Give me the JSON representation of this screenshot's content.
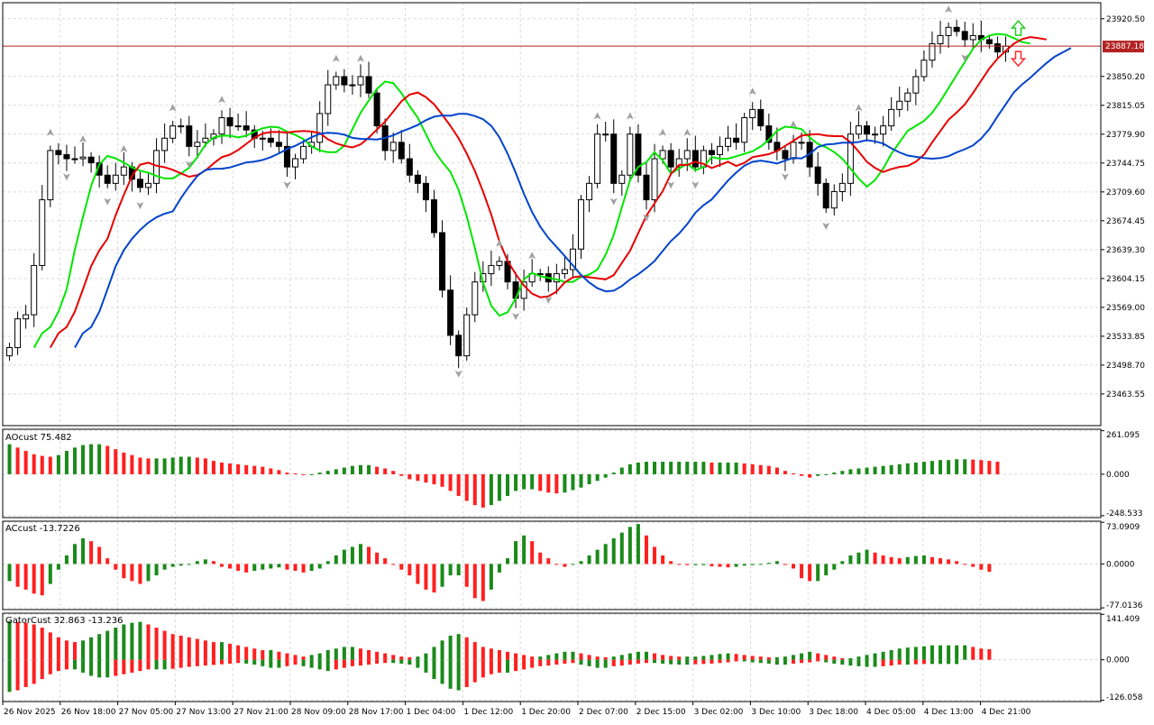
{
  "colors": {
    "background": "#ffffff",
    "grid": "#d9d9d9",
    "frame": "#000000",
    "candle": "#000000",
    "alligator_lips": "#00e600",
    "alligator_teeth": "#e60000",
    "alligator_jaw": "#0044cc",
    "price_line": "#b22222",
    "price_tag_bg": "#b22222",
    "price_tag_text": "#ffffff",
    "up_bar": "#1a8a1a",
    "down_bar": "#ff1f1f",
    "fractal": "#a0a0a0",
    "arrow_up": "#22cc22",
    "arrow_down": "#ff2a2a"
  },
  "icons": {
    "fractal_up": "fractal-up-arrow-icon",
    "fractal_down": "fractal-down-arrow-icon",
    "signal_up": "hollow-up-arrow-icon",
    "signal_down": "hollow-down-arrow-icon"
  },
  "current_price": "23887.18",
  "time_labels": [
    "26 Nov 2025",
    "26 Nov 18:00",
    "27 Nov 05:00",
    "27 Nov 13:00",
    "27 Nov 21:00",
    "28 Nov 09:00",
    "28 Nov 17:00",
    "1 Dec 04:00",
    "1 Dec 12:00",
    "1 Dec 20:00",
    "2 Dec 07:00",
    "2 Dec 15:00",
    "3 Dec 02:00",
    "3 Dec 10:00",
    "3 Dec 18:00",
    "4 Dec 05:00",
    "4 Dec 13:00",
    "4 Dec 21:00"
  ],
  "chart_data": [
    {
      "type": "candlestick",
      "title": "",
      "y_ticks": [
        "23920.50",
        "23850.20",
        "23815.05",
        "23779.90",
        "23744.75",
        "23709.60",
        "23674.45",
        "23639.30",
        "23604.15",
        "23569.00",
        "23533.85",
        "23498.70",
        "23463.55"
      ],
      "ylim": [
        23425,
        23940
      ],
      "lines": [
        "Alligator Lips",
        "Alligator Teeth",
        "Alligator Jaw"
      ],
      "open": [
        23510,
        23520,
        23555,
        23560,
        23620,
        23700,
        23760,
        23755,
        23750,
        23750,
        23752,
        23745,
        23730,
        23720,
        23730,
        23740,
        23725,
        23715,
        23720,
        23760,
        23775,
        23790,
        23790,
        23765,
        23770,
        23775,
        23780,
        23800,
        23790,
        23790,
        23785,
        23775,
        23775,
        23770,
        23765,
        23740,
        23750,
        23765,
        23770,
        23805,
        23840,
        23850,
        23840,
        23840,
        23850,
        23830,
        23790,
        23760,
        23770,
        23750,
        23730,
        23720,
        23700,
        23660,
        23590,
        23535,
        23510,
        23560,
        23600,
        23610,
        23620,
        23625,
        23600,
        23580,
        23600,
        23610,
        23610,
        23600,
        23610,
        23615,
        23640,
        23700,
        23720,
        23780,
        23780,
        23720,
        23730,
        23780,
        23730,
        23700,
        23750,
        23760,
        23740,
        23750,
        23760,
        23740,
        23760,
        23755,
        23765,
        23775,
        23770,
        23800,
        23810,
        23790,
        23770,
        23760,
        23750,
        23770,
        23770,
        23740,
        23720,
        23690,
        23710,
        23720,
        23780,
        23790,
        23780,
        23780,
        23790,
        23810,
        23820,
        23830,
        23850,
        23870,
        23890,
        23900,
        23910,
        23905,
        23895,
        23900,
        23895,
        23890,
        23880
      ],
      "close": [
        23520,
        23555,
        23560,
        23620,
        23700,
        23760,
        23755,
        23750,
        23750,
        23752,
        23745,
        23730,
        23720,
        23730,
        23740,
        23725,
        23715,
        23720,
        23760,
        23775,
        23790,
        23790,
        23765,
        23770,
        23775,
        23780,
        23800,
        23790,
        23790,
        23785,
        23775,
        23775,
        23770,
        23765,
        23740,
        23750,
        23765,
        23770,
        23805,
        23840,
        23850,
        23840,
        23840,
        23850,
        23830,
        23790,
        23760,
        23770,
        23750,
        23730,
        23720,
        23700,
        23660,
        23590,
        23535,
        23510,
        23560,
        23600,
        23610,
        23620,
        23625,
        23600,
        23580,
        23600,
        23610,
        23610,
        23600,
        23610,
        23615,
        23640,
        23700,
        23720,
        23780,
        23780,
        23720,
        23730,
        23780,
        23730,
        23700,
        23750,
        23760,
        23740,
        23750,
        23760,
        23740,
        23760,
        23755,
        23765,
        23775,
        23770,
        23800,
        23810,
        23790,
        23770,
        23760,
        23750,
        23770,
        23770,
        23740,
        23720,
        23690,
        23710,
        23720,
        23780,
        23790,
        23780,
        23780,
        23790,
        23810,
        23820,
        23830,
        23850,
        23870,
        23890,
        23900,
        23910,
        23905,
        23895,
        23900,
        23895,
        23890,
        23880,
        23887
      ]
    },
    {
      "type": "bar",
      "title": "AOcust 75.482",
      "y_ticks": [
        "261.095",
        "0.000",
        "-248.533"
      ],
      "ylim": [
        -260,
        270
      ],
      "series": [
        {
          "name": "AOcust",
          "values": [
            180,
            160,
            140,
            120,
            110,
            105,
            115,
            140,
            160,
            175,
            180,
            180,
            170,
            150,
            130,
            115,
            100,
            95,
            95,
            95,
            100,
            105,
            105,
            100,
            95,
            80,
            70,
            65,
            60,
            55,
            50,
            45,
            35,
            25,
            10,
            5,
            -5,
            -5,
            10,
            20,
            30,
            40,
            50,
            55,
            55,
            45,
            35,
            20,
            -10,
            -30,
            -40,
            -50,
            -60,
            -75,
            -100,
            -130,
            -160,
            -185,
            -200,
            -185,
            -160,
            -130,
            -100,
            -90,
            -90,
            -100,
            -110,
            -115,
            -110,
            -95,
            -80,
            -60,
            -40,
            -20,
            10,
            40,
            60,
            70,
            75,
            75,
            75,
            75,
            75,
            75,
            75,
            75,
            70,
            70,
            70,
            70,
            65,
            60,
            55,
            50,
            40,
            20,
            5,
            -10,
            -20,
            -10,
            0,
            10,
            20,
            30,
            35,
            40,
            45,
            50,
            55,
            60,
            65,
            70,
            75,
            80,
            85,
            85,
            90,
            90,
            88,
            85,
            80,
            75
          ]
        }
      ]
    },
    {
      "type": "bar",
      "title": "ACcust -13.7226",
      "y_ticks": [
        "73.0909",
        "0.0000",
        "-77.0136"
      ],
      "ylim": [
        -80,
        75
      ],
      "series": [
        {
          "name": "ACcust",
          "values": [
            -30,
            -40,
            -45,
            -52,
            -55,
            -35,
            -10,
            15,
            35,
            45,
            40,
            30,
            10,
            -10,
            -25,
            -30,
            -35,
            -30,
            -20,
            -10,
            -5,
            -3,
            0,
            5,
            8,
            5,
            -5,
            -8,
            -12,
            -15,
            -12,
            -10,
            -8,
            -6,
            -10,
            -12,
            -15,
            -12,
            -8,
            5,
            15,
            25,
            30,
            35,
            30,
            20,
            10,
            0,
            -10,
            -20,
            -35,
            -45,
            -50,
            -40,
            -20,
            -20,
            -40,
            -60,
            -65,
            -45,
            -15,
            10,
            40,
            50,
            40,
            20,
            10,
            0,
            -5,
            0,
            5,
            15,
            25,
            35,
            45,
            55,
            65,
            70,
            50,
            30,
            15,
            5,
            0,
            -2,
            -2,
            -2,
            -4,
            -5,
            -6,
            -5,
            -3,
            -2,
            -1,
            2,
            5,
            0,
            -8,
            -25,
            -30,
            -30,
            -20,
            -10,
            5,
            15,
            20,
            25,
            20,
            15,
            12,
            10,
            12,
            14,
            15,
            12,
            10,
            8,
            5,
            0,
            -5,
            -10,
            -13.7
          ]
        }
      ]
    },
    {
      "type": "bar",
      "title": "GatorCust 32.863 -13.236",
      "y_ticks": [
        "141.409",
        "0.000",
        "-126.058"
      ],
      "ylim": [
        -130,
        145
      ],
      "series": [
        {
          "name": "GatorCust upper",
          "values": [
            120,
            118,
            115,
            110,
            100,
            85,
            70,
            60,
            55,
            60,
            70,
            80,
            90,
            100,
            110,
            115,
            118,
            110,
            100,
            90,
            80,
            75,
            70,
            65,
            60,
            55,
            55,
            50,
            45,
            40,
            35,
            30,
            30,
            25,
            20,
            15,
            10,
            15,
            20,
            30,
            35,
            40,
            40,
            35,
            30,
            25,
            20,
            15,
            10,
            8,
            10,
            20,
            40,
            60,
            75,
            80,
            70,
            55,
            40,
            35,
            30,
            25,
            20,
            15,
            10,
            10,
            15,
            20,
            25,
            25,
            20,
            15,
            10,
            8,
            10,
            15,
            20,
            25,
            25,
            20,
            15,
            12,
            10,
            10,
            10,
            12,
            15,
            18,
            20,
            18,
            15,
            12,
            10,
            8,
            8,
            10,
            15,
            20,
            25,
            20,
            15,
            10,
            5,
            5,
            10,
            15,
            20,
            25,
            30,
            35,
            38,
            40,
            42,
            45,
            45,
            45,
            45,
            45,
            40,
            35,
            32.863
          ]
        },
        {
          "name": "GatorCust lower",
          "values": [
            -100,
            -95,
            -85,
            -75,
            -60,
            -45,
            -35,
            -30,
            -30,
            -40,
            -50,
            -55,
            -55,
            -50,
            -45,
            -40,
            -35,
            -30,
            -30,
            -30,
            -28,
            -25,
            -22,
            -20,
            -18,
            -16,
            -14,
            -12,
            -10,
            -12,
            -15,
            -20,
            -25,
            -25,
            -20,
            -15,
            -20,
            -25,
            -30,
            -35,
            -30,
            -25,
            -20,
            -18,
            -15,
            -12,
            -10,
            -10,
            -12,
            -15,
            -25,
            -40,
            -60,
            -75,
            -90,
            -95,
            -85,
            -70,
            -55,
            -45,
            -40,
            -40,
            -35,
            -30,
            -25,
            -20,
            -18,
            -15,
            -12,
            -10,
            -15,
            -20,
            -25,
            -25,
            -20,
            -18,
            -15,
            -12,
            -10,
            -10,
            -12,
            -14,
            -15,
            -15,
            -14,
            -13,
            -12,
            -10,
            -8,
            -5,
            -5,
            -8,
            -10,
            -12,
            -15,
            -15,
            -12,
            -10,
            -8,
            -5,
            -8,
            -12,
            -15,
            -18,
            -20,
            -22,
            -22,
            -20,
            -18,
            -15,
            -15,
            -14,
            -13,
            -13,
            -13,
            -13,
            -13.236
          ]
        }
      ]
    }
  ]
}
